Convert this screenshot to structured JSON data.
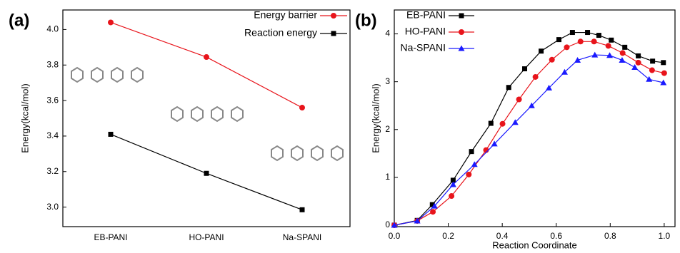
{
  "chart_data": [
    {
      "type": "line",
      "label": "(a)",
      "ylabel": "Energy(kcal/mol)",
      "categories": [
        "EB-PANI",
        "HO-PANI",
        "Na-SPANI"
      ],
      "series": [
        {
          "name": "Energy barrier",
          "color": "#e8141b",
          "marker": "circle",
          "values": [
            4.04,
            3.845,
            3.56
          ]
        },
        {
          "name": "Reaction energy",
          "color": "#000000",
          "marker": "square",
          "values": [
            3.41,
            3.19,
            2.985
          ]
        }
      ],
      "ylim": [
        2.89,
        4.11
      ],
      "yticks": [
        {
          "value": 3,
          "label": "3.0"
        },
        3.2,
        3.4,
        3.6,
        3.8,
        {
          "value": 4,
          "label": "4.0"
        }
      ],
      "legend": "upper right"
    },
    {
      "type": "line",
      "label": "(b)",
      "ylabel": "Energy(kcal/mol)",
      "xlabel": "Reaction Coordinate",
      "series": [
        {
          "name": "EB-PANI",
          "color": "#000000",
          "marker": "square",
          "x": [
            0,
            0.085,
            0.141,
            0.218,
            0.286,
            0.358,
            0.424,
            0.483,
            0.544,
            0.61,
            0.66,
            0.716,
            0.758,
            0.804,
            0.854,
            0.904,
            0.957,
            0.997
          ],
          "values": [
            0,
            0.1,
            0.43,
            0.94,
            1.54,
            2.13,
            2.88,
            3.27,
            3.64,
            3.88,
            4.03,
            4.03,
            3.97,
            3.87,
            3.72,
            3.54,
            3.43,
            3.4
          ]
        },
        {
          "name": "HO-PANI",
          "color": "#e8141b",
          "marker": "circle",
          "x": [
            0,
            0.085,
            0.143,
            0.212,
            0.276,
            0.34,
            0.401,
            0.462,
            0.523,
            0.584,
            0.639,
            0.69,
            0.74,
            0.793,
            0.846,
            0.904,
            0.955,
            1.0
          ],
          "values": [
            0,
            0.09,
            0.28,
            0.61,
            1.06,
            1.57,
            2.12,
            2.63,
            3.1,
            3.46,
            3.72,
            3.84,
            3.84,
            3.75,
            3.6,
            3.4,
            3.24,
            3.18
          ]
        },
        {
          "name": "Na-SPANI",
          "color": "#1a1aff",
          "marker": "triangle",
          "x": [
            0,
            0.085,
            0.149,
            0.218,
            0.297,
            0.371,
            0.448,
            0.509,
            0.573,
            0.631,
            0.679,
            0.743,
            0.798,
            0.844,
            0.891,
            0.944,
            0.997
          ],
          "values": [
            0,
            0.09,
            0.4,
            0.85,
            1.27,
            1.7,
            2.15,
            2.5,
            2.87,
            3.2,
            3.45,
            3.56,
            3.55,
            3.45,
            3.3,
            3.05,
            2.98
          ]
        }
      ],
      "xlim": [
        0,
        1.04
      ],
      "xticks": [
        {
          "value": 0,
          "label": "0.0"
        },
        0.2,
        0.4,
        0.6,
        0.8,
        {
          "value": 1,
          "label": "1.0"
        }
      ],
      "ylim": [
        -0.03,
        4.5
      ],
      "yticks": [
        0,
        1,
        2,
        3,
        4
      ],
      "legend": "upper left"
    }
  ]
}
